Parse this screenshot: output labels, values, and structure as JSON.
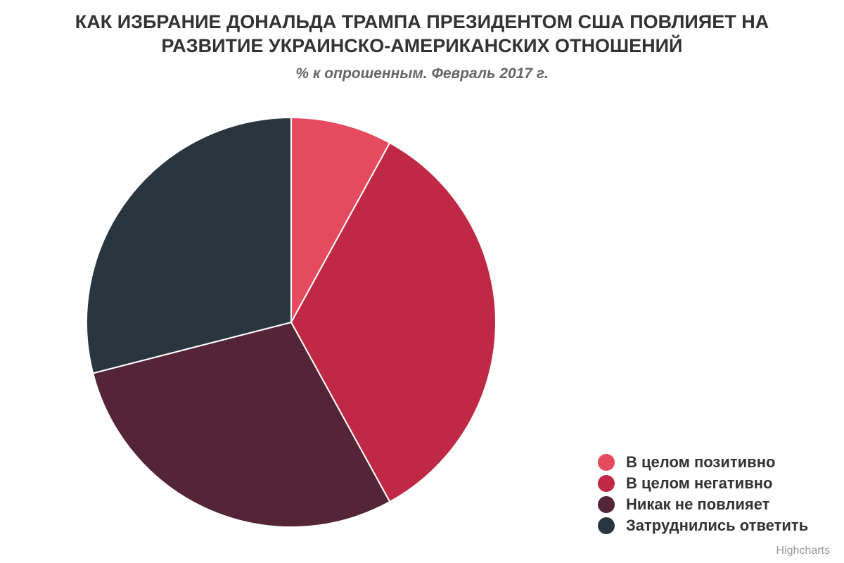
{
  "chart_data": {
    "type": "pie",
    "title": "КАК ИЗБРАНИЕ ДОНАЛЬДА ТРАМПА ПРЕЗИДЕНТОМ США ПОВЛИЯЕТ НА РАЗВИТИЕ УКРАИНСКО-АМЕРИКАНСКИХ ОТНОШЕНИЙ",
    "subtitle": "% к опрошенным. Февраль 2017 г.",
    "legend_position": "bottom-right",
    "series": [
      {
        "categories": [
          "В целом позитивно",
          "В целом негативно",
          "Никак не повлияет",
          "Затруднились ответить"
        ],
        "values": [
          8,
          34,
          29,
          29
        ],
        "colors": [
          "#e64a5e",
          "#c02945",
          "#542437",
          "#2a363f"
        ]
      }
    ]
  },
  "credits": "Highcharts"
}
